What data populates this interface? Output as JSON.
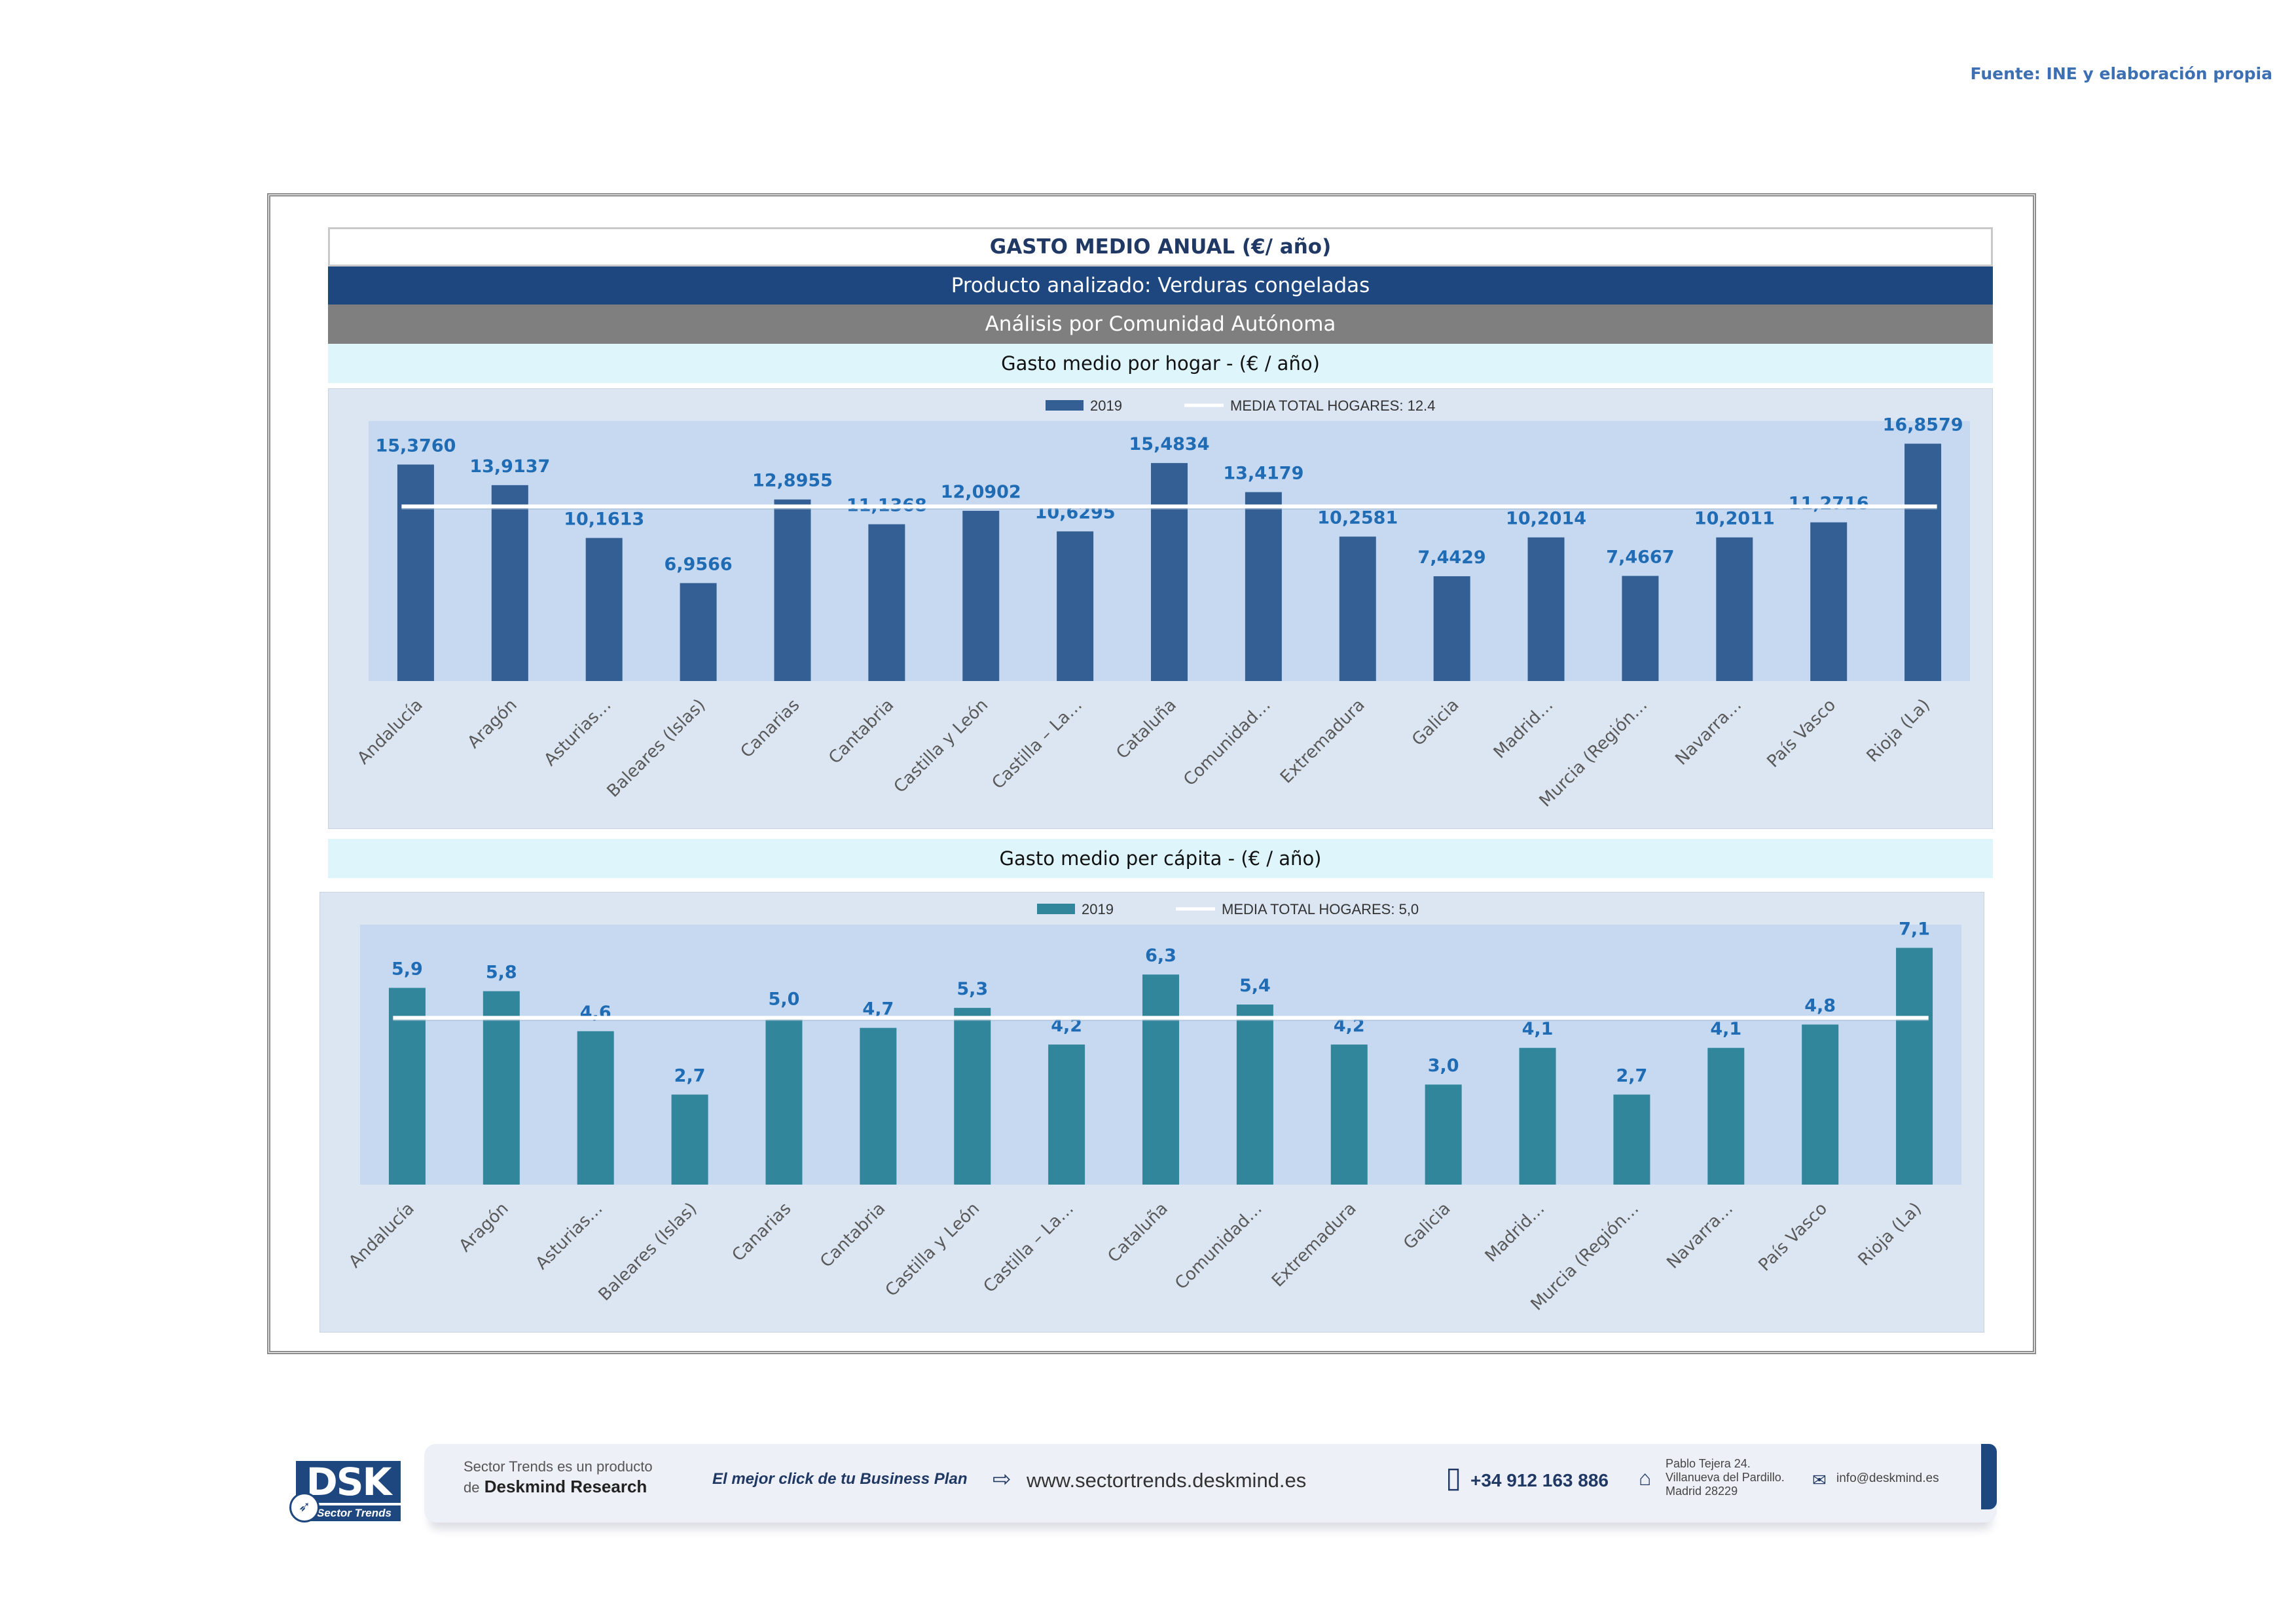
{
  "source": "Fuente: INE y elaboración propia",
  "header": {
    "title": "GASTO MEDIO ANUAL (€/ año)",
    "product": "Producto analizado: Verduras congeladas",
    "analysis": "Análisis por Comunidad Autónoma"
  },
  "colors": {
    "hogar_bar": "#345f94",
    "capita_bar": "#31869b",
    "plot_bg": "#c6d9f1",
    "chart_bg": "#dce6f2",
    "label": "#1f6cb5"
  },
  "chart_data": [
    {
      "type": "bar",
      "title": "Gasto medio por hogar -  (€ / año)",
      "legend_series": "2019",
      "legend_mean": "MEDIA TOTAL  HOGARES:   12.4",
      "mean_value": 12.4,
      "legend_position": "top",
      "categories": [
        "Andalucía",
        "Aragón",
        "Asturias…",
        "Baleares (Islas)",
        "Canarias",
        "Cantabria",
        "Castilla y León",
        "Castilla – La…",
        "Cataluña",
        "Comunidad…",
        "Extremadura",
        "Galicia",
        "Madrid…",
        "Murcia (Región…",
        "Navarra…",
        "País Vasco",
        "Rioja (La)"
      ],
      "values": [
        15.376,
        13.9137,
        10.1613,
        6.9566,
        12.8955,
        11.1368,
        12.0902,
        10.6295,
        15.4834,
        13.4179,
        10.2581,
        7.4429,
        10.2014,
        7.4667,
        10.2011,
        11.2716,
        16.8579
      ],
      "labels": [
        "15,3760",
        "13,9137",
        "10,1613",
        "6,9566",
        "12,8955",
        "11,1368",
        "12,0902",
        "10,6295",
        "15,4834",
        "13,4179",
        "10,2581",
        "7,4429",
        "10,2014",
        "7,4667",
        "10,2011",
        "11,2716",
        "16,8579"
      ],
      "ylim": [
        0,
        18
      ],
      "grid": false
    },
    {
      "type": "bar",
      "title": "Gasto medio per cápita -  (€ / año)",
      "legend_series": "2019",
      "legend_mean": "MEDIA TOTAL  HOGARES:   5,0",
      "mean_value": 5.0,
      "legend_position": "top",
      "categories": [
        "Andalucía",
        "Aragón",
        "Asturias…",
        "Baleares (Islas)",
        "Canarias",
        "Cantabria",
        "Castilla y León",
        "Castilla – La…",
        "Cataluña",
        "Comunidad…",
        "Extremadura",
        "Galicia",
        "Madrid…",
        "Murcia (Región…",
        "Navarra…",
        "País Vasco",
        "Rioja (La)"
      ],
      "values": [
        5.9,
        5.8,
        4.6,
        2.7,
        5.0,
        4.7,
        5.3,
        4.2,
        6.3,
        5.4,
        4.2,
        3.0,
        4.1,
        2.7,
        4.1,
        4.8,
        7.1
      ],
      "labels": [
        "5,9",
        "5,8",
        "4,6",
        "2,7",
        "5,0",
        "4,7",
        "5,3",
        "4,2",
        "6,3",
        "5,4",
        "4,2",
        "3,0",
        "4,1",
        "2,7",
        "4,1",
        "4,8",
        "7,1"
      ],
      "ylim": [
        0,
        7.6
      ],
      "grid": false
    }
  ],
  "footer": {
    "logo_text": "DSK",
    "logo_sub": "Sector Trends",
    "product_line1": "Sector Trends es un producto",
    "product_line2_prefix": "de",
    "product_line2_brand": "Deskmind Research",
    "slogan": "El mejor click de tu Business Plan",
    "website": "www.sectortrends.deskmind.es",
    "phone": "+34 912 163 886",
    "address_line1": "Pablo Tejera 24.",
    "address_line2": "Villanueva del Pardillo.",
    "address_line3": "Madrid 28229",
    "email": "info@deskmind.es"
  }
}
